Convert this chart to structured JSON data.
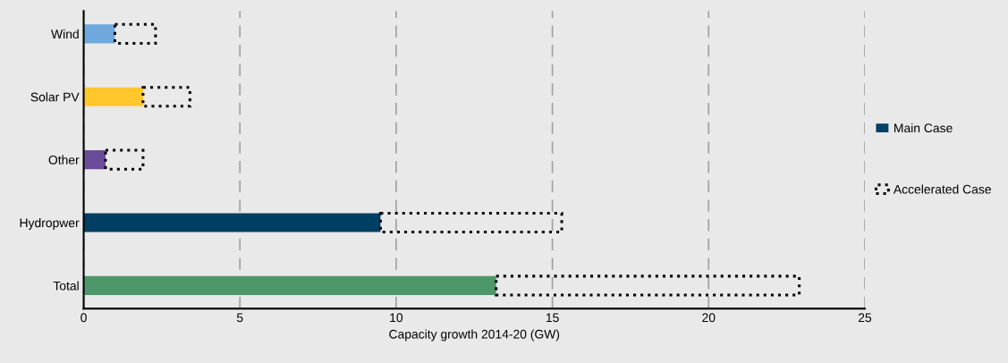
{
  "chart_data": {
    "type": "bar",
    "orientation": "horizontal",
    "stacked": true,
    "categories": [
      "Wind",
      "Solar PV",
      "Other",
      "Hydropwer",
      "Total"
    ],
    "series": [
      {
        "name": "Main Case",
        "color": "#003f63",
        "colors": [
          "#6fa8dc",
          "#ffc72c",
          "#6b4c9a",
          "#003f63",
          "#4e9769"
        ],
        "values": [
          1.0,
          1.9,
          0.7,
          9.5,
          13.2
        ]
      },
      {
        "name": "Accelerated Case",
        "color": "#000000",
        "line_style": "dotted",
        "values": [
          1.3,
          1.5,
          1.2,
          5.8,
          9.7
        ]
      }
    ],
    "xlabel": "Capacity growth 2014-20 (GW)",
    "xlim": [
      0,
      25
    ],
    "xticks": [
      0,
      5,
      10,
      15,
      20,
      25
    ],
    "grid": "x",
    "legend": "right"
  }
}
